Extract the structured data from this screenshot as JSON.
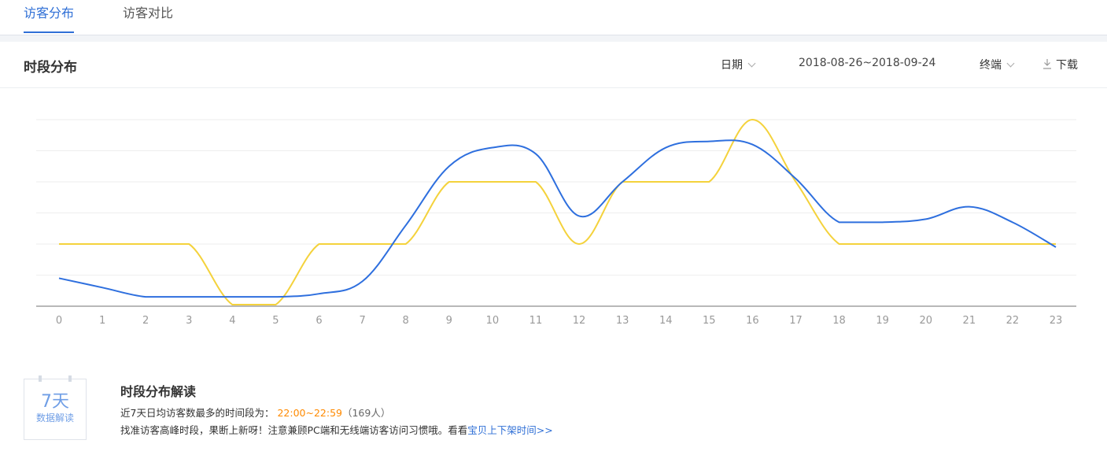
{
  "tabs": [
    {
      "label": "访客分布",
      "active": true
    },
    {
      "label": "访客对比",
      "active": false
    }
  ],
  "panel": {
    "title": "时段分布",
    "date_label": "日期",
    "date_range": "2018-08-26~2018-09-24",
    "terminal_label": "终端",
    "download_label": "下载"
  },
  "colors": {
    "blue_series": "#2e6fde",
    "yellow_series": "#f4d23c",
    "accent": "#2f6fd6",
    "highlight": "#ff8a00"
  },
  "chart_data": {
    "type": "line",
    "x": [
      0,
      1,
      2,
      3,
      4,
      5,
      6,
      7,
      8,
      9,
      10,
      11,
      12,
      13,
      14,
      15,
      16,
      17,
      18,
      19,
      20,
      21,
      22,
      23
    ],
    "ylim": [
      0,
      6
    ],
    "grid": true,
    "series": [
      {
        "color": "#2e6fde",
        "values": [
          0.9,
          0.6,
          0.3,
          0.3,
          0.3,
          0.3,
          0.4,
          0.8,
          2.6,
          4.5,
          5.1,
          4.9,
          2.9,
          4.0,
          5.1,
          5.3,
          5.2,
          4.1,
          2.7,
          2.7,
          2.8,
          3.2,
          2.7,
          1.9
        ]
      },
      {
        "color": "#f4d23c",
        "values": [
          2.0,
          2.0,
          2.0,
          2.0,
          0.05,
          0.05,
          2.0,
          2.0,
          2.0,
          4.0,
          4.0,
          4.0,
          2.0,
          4.0,
          4.0,
          4.0,
          6.0,
          4.0,
          2.0,
          2.0,
          2.0,
          2.0,
          2.0,
          2.0
        ]
      }
    ]
  },
  "interpretation": {
    "badge_days": "7天",
    "badge_sub": "数据解读",
    "title": "时段分布解读",
    "line1_prefix": "近7天日均访客数最多的时间段为：",
    "line1_time": "22:00~22:59",
    "line1_count": "（169人）",
    "line2_text": "找准访客高峰时段，果断上新呀！注意兼顾PC端和无线端访客访问习惯哦。看看",
    "line2_link": "宝贝上下架时间>>"
  }
}
